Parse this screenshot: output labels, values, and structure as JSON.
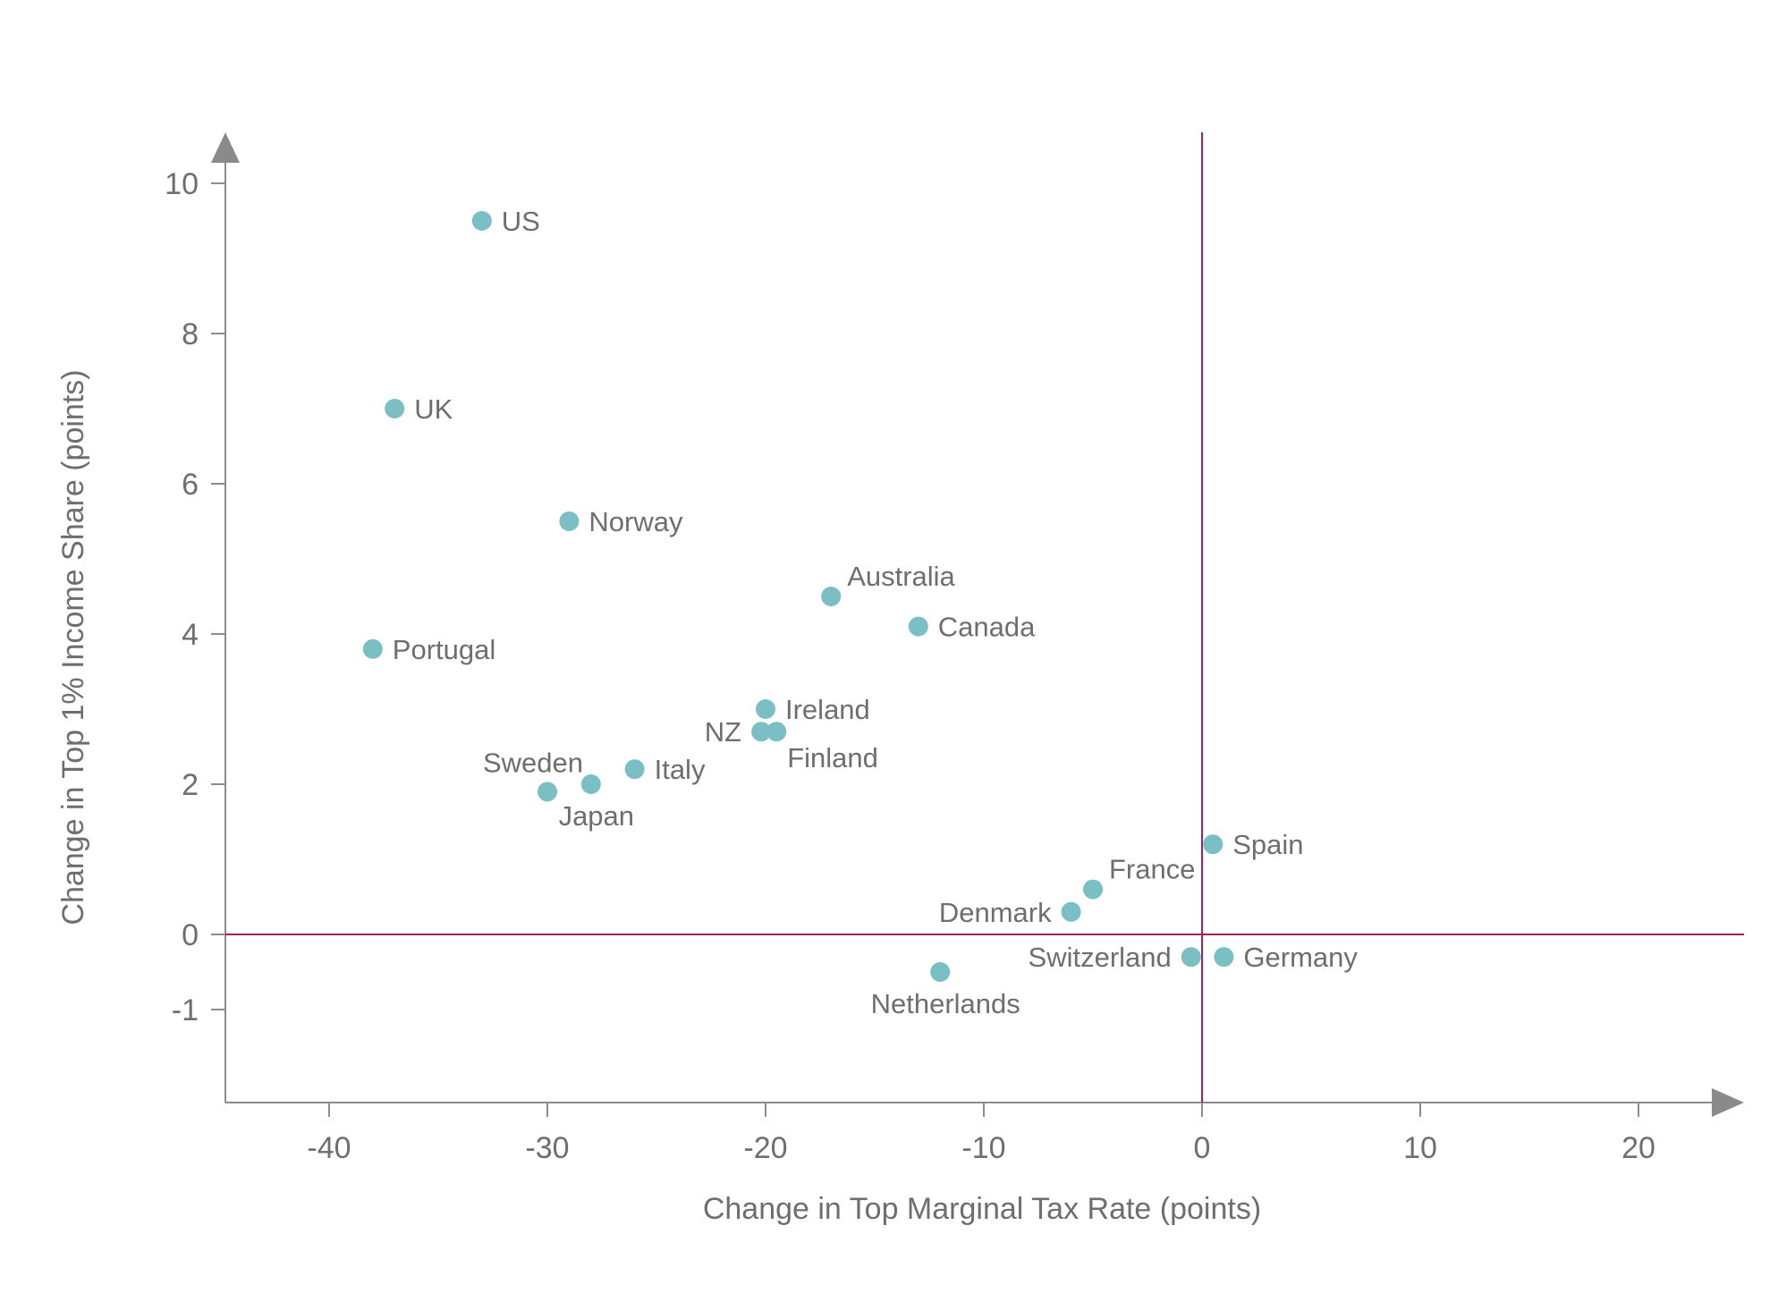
{
  "colors": {
    "axis": "#8c8c8c",
    "text": "#6e6e6e",
    "point": "#79bfc4",
    "reference_line": "#a3215f",
    "background": "#ffffff"
  },
  "chart_data": {
    "type": "scatter",
    "title": "",
    "xlabel": "Change in Top Marginal Tax Rate (points)",
    "ylabel": "Change in Top 1% Income Share (points)",
    "xlim": [
      -45,
      25
    ],
    "ylim": [
      -2.2,
      10.7
    ],
    "x_ticks": [
      -40,
      -30,
      -20,
      -10,
      0,
      10,
      20
    ],
    "x_tick_labels": [
      "-40",
      "-30",
      "-20",
      "-10",
      "0",
      "10",
      "20"
    ],
    "y_ticks": [
      -1,
      0,
      2,
      4,
      6,
      8,
      10
    ],
    "y_tick_labels": [
      "-1",
      "0",
      "2",
      "4",
      "6",
      "8",
      "10"
    ],
    "reference_lines": {
      "x": 0,
      "y": 0
    },
    "grid": false,
    "legend": "none",
    "points": [
      {
        "label": "US",
        "x": -33,
        "y": 9.5,
        "label_pos": "right"
      },
      {
        "label": "UK",
        "x": -37,
        "y": 7.0,
        "label_pos": "right"
      },
      {
        "label": "Norway",
        "x": -29,
        "y": 5.5,
        "label_pos": "right"
      },
      {
        "label": "Portugal",
        "x": -38,
        "y": 3.8,
        "label_pos": "right"
      },
      {
        "label": "Australia",
        "x": -17,
        "y": 4.5,
        "label_pos": "top-right"
      },
      {
        "label": "Canada",
        "x": -13,
        "y": 4.1,
        "label_pos": "right"
      },
      {
        "label": "Ireland",
        "x": -20,
        "y": 3.0,
        "label_pos": "right"
      },
      {
        "label": "NZ",
        "x": -20.2,
        "y": 2.7,
        "label_pos": "left"
      },
      {
        "label": "Finland",
        "x": -19.5,
        "y": 2.7,
        "label_pos": "bottom-right"
      },
      {
        "label": "Italy",
        "x": -26,
        "y": 2.2,
        "label_pos": "right"
      },
      {
        "label": "Sweden",
        "x": -30,
        "y": 1.9,
        "label_pos": "top"
      },
      {
        "label": "Japan",
        "x": -28,
        "y": 2.0,
        "label_pos": "bottom"
      },
      {
        "label": "Spain",
        "x": 0.5,
        "y": 1.2,
        "label_pos": "right"
      },
      {
        "label": "France",
        "x": -5,
        "y": 0.6,
        "label_pos": "top-right"
      },
      {
        "label": "Denmark",
        "x": -6,
        "y": 0.3,
        "label_pos": "left"
      },
      {
        "label": "Switzerland",
        "x": -0.5,
        "y": -0.3,
        "label_pos": "left"
      },
      {
        "label": "Germany",
        "x": 1,
        "y": -0.3,
        "label_pos": "right"
      },
      {
        "label": "Netherlands",
        "x": -12,
        "y": -0.5,
        "label_pos": "bottom"
      }
    ]
  }
}
